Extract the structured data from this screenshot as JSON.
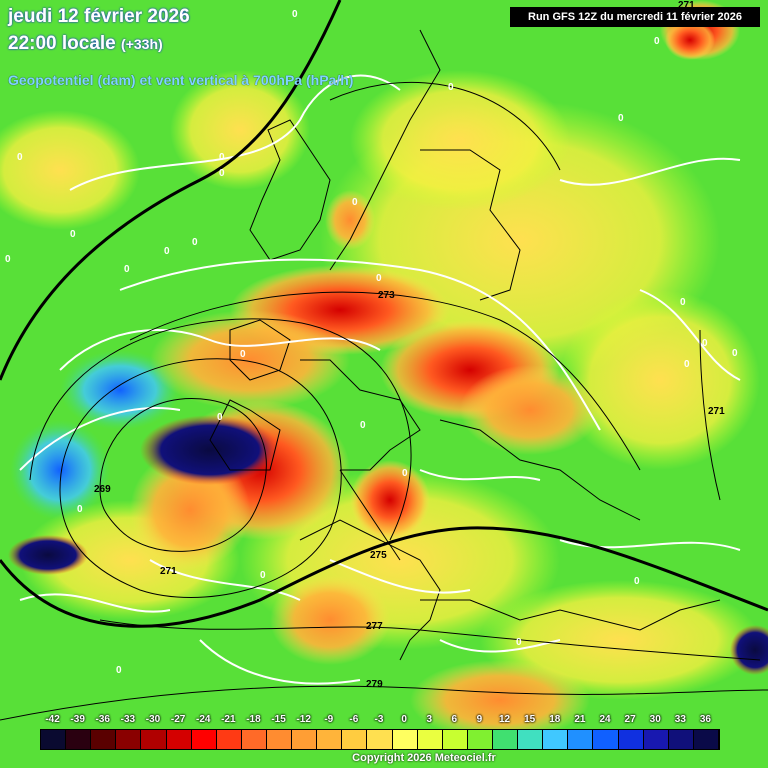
{
  "header": {
    "date_line": "jeudi 12 février 2026",
    "time_line": "22:00 locale",
    "offset": "(+33h)",
    "subtitle": "Geopotentiel (dam) et vent vertical à 700hPa (hPa/h)",
    "run_info": "Run GFS 12Z du mercredi 11 février 2026"
  },
  "legend": {
    "values": [
      "-42",
      "-39",
      "-36",
      "-33",
      "-30",
      "-27",
      "-24",
      "-21",
      "-18",
      "-15",
      "-12",
      "-9",
      "-6",
      "-3",
      "0",
      "3",
      "6",
      "9",
      "12",
      "15",
      "18",
      "21",
      "24",
      "27",
      "30",
      "33",
      "36"
    ],
    "colors": [
      "#0a0a30",
      "#2a0010",
      "#5a0000",
      "#8a0000",
      "#b00000",
      "#d40000",
      "#ff0000",
      "#ff3a14",
      "#ff6a28",
      "#ff8c30",
      "#ff9e34",
      "#ffb43a",
      "#ffcc40",
      "#ffe050",
      "#ffff60",
      "#eaff40",
      "#c8ff30",
      "#80f030",
      "#40e070",
      "#40e0c0",
      "#40c8ff",
      "#2090ff",
      "#1060ff",
      "#1030e0",
      "#1818b0",
      "#10107a",
      "#0a0a48"
    ]
  },
  "isolines": {
    "labels": [
      "269",
      "271",
      "271",
      "273",
      "275",
      "277",
      "279",
      "271"
    ],
    "zero_labels": [
      "0",
      "0",
      "0",
      "0",
      "0",
      "0",
      "0",
      "0",
      "0",
      "0",
      "0",
      "0",
      "0",
      "0",
      "0",
      "0",
      "0",
      "0",
      "0",
      "0",
      "0",
      "0",
      "0",
      "0",
      "0",
      "0",
      "0"
    ]
  },
  "footer": {
    "copyright": "Copyright 2026 Meteociel.fr"
  }
}
